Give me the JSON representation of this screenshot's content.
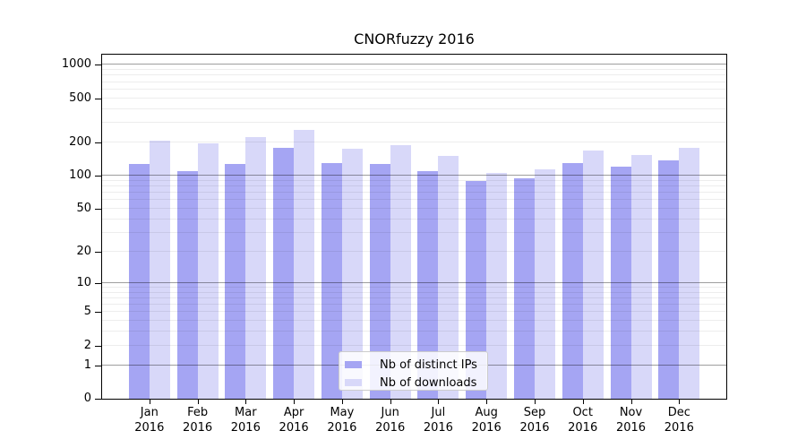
{
  "title": "CNORfuzzy 2016",
  "chart_data": {
    "type": "bar",
    "title": "CNORfuzzy 2016",
    "xlabel": "",
    "ylabel": "",
    "yscale": "log1p",
    "ylim": [
      0,
      1260
    ],
    "grid": "both",
    "legend_position": "bottom-center-inside",
    "categories": [
      "Jan",
      "Feb",
      "Mar",
      "Apr",
      "May",
      "Jun",
      "Jul",
      "Aug",
      "Sep",
      "Oct",
      "Nov",
      "Dec"
    ],
    "year": "2016",
    "series": [
      {
        "name": "Nb of distinct IPs",
        "color": "#a5a5f3",
        "values": [
          127,
          111,
          127,
          180,
          130,
          128,
          111,
          90,
          94,
          129,
          120,
          137
        ]
      },
      {
        "name": "Nb of downloads",
        "color": "#d8d8f9",
        "values": [
          207,
          196,
          225,
          260,
          175,
          190,
          150,
          106,
          115,
          170,
          155,
          180
        ]
      }
    ],
    "y_ticks": [
      1000,
      500,
      200,
      100,
      50,
      20,
      10,
      5,
      2,
      1,
      0
    ],
    "gridlines_major": [
      1,
      10,
      100,
      1000
    ],
    "gridlines_minor": [
      2,
      3,
      4,
      5,
      6,
      7,
      8,
      9,
      20,
      30,
      40,
      50,
      60,
      70,
      80,
      90,
      200,
      300,
      400,
      500,
      600,
      700,
      800,
      900
    ]
  },
  "colors": {
    "bar_dark": "#a5a5f3",
    "bar_light": "#d8d8f9",
    "frame": "#000000",
    "grid_major": "#9e9e9e",
    "grid_minor": "#ececec",
    "legend_border": "#cccccc"
  }
}
